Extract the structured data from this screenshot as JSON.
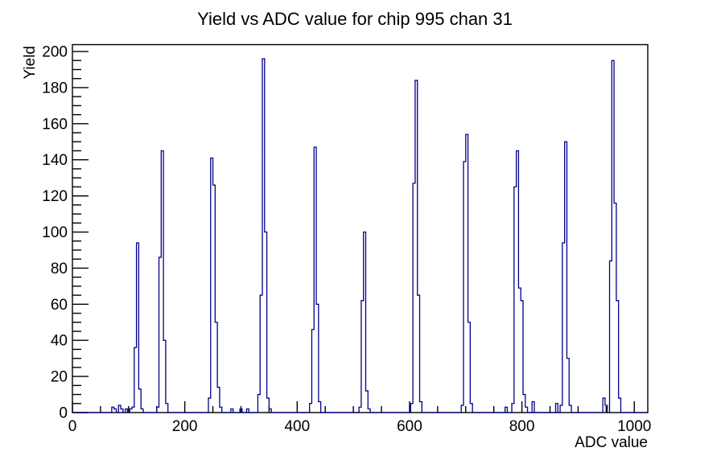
{
  "chart_data": {
    "type": "line",
    "style": "step-histogram",
    "title": "Yield vs ADC value for chip 995 chan 31",
    "xlabel": "ADC value",
    "ylabel": "Yield",
    "xlim": [
      0,
      1024
    ],
    "ylim": [
      0,
      203.8
    ],
    "x_major_ticks": [
      0,
      200,
      400,
      600,
      800,
      1000
    ],
    "x_minor_step": 50,
    "y_major_ticks": [
      0,
      20,
      40,
      60,
      80,
      100,
      120,
      140,
      160,
      180,
      200
    ],
    "y_minor_step": 5,
    "grid": false,
    "legend": "none",
    "line_color": "#00008b",
    "axis_color": "#000000",
    "background_color": "#ffffff",
    "bin_width": 4,
    "peaks": [
      {
        "adc": 116,
        "yield": 94
      },
      {
        "adc": 160,
        "yield": 145
      },
      {
        "adc": 248,
        "yield": 141
      },
      {
        "adc": 340,
        "yield": 196
      },
      {
        "adc": 432,
        "yield": 147
      },
      {
        "adc": 520,
        "yield": 100
      },
      {
        "adc": 612,
        "yield": 184
      },
      {
        "adc": 702,
        "yield": 154
      },
      {
        "adc": 792,
        "yield": 145
      },
      {
        "adc": 878,
        "yield": 150
      },
      {
        "adc": 962,
        "yield": 195
      }
    ],
    "bins": [
      [
        72,
        3
      ],
      [
        76,
        2
      ],
      [
        84,
        4
      ],
      [
        88,
        2
      ],
      [
        96,
        2
      ],
      [
        104,
        2
      ],
      [
        108,
        3
      ],
      [
        112,
        36
      ],
      [
        116,
        94
      ],
      [
        120,
        13
      ],
      [
        124,
        2
      ],
      [
        152,
        3
      ],
      [
        156,
        86
      ],
      [
        160,
        145
      ],
      [
        164,
        40
      ],
      [
        168,
        5
      ],
      [
        244,
        8
      ],
      [
        248,
        141
      ],
      [
        252,
        126
      ],
      [
        256,
        50
      ],
      [
        260,
        14
      ],
      [
        264,
        3
      ],
      [
        284,
        2
      ],
      [
        300,
        2
      ],
      [
        312,
        2
      ],
      [
        332,
        10
      ],
      [
        336,
        65
      ],
      [
        340,
        196
      ],
      [
        344,
        100
      ],
      [
        348,
        8
      ],
      [
        352,
        2
      ],
      [
        424,
        5
      ],
      [
        428,
        46
      ],
      [
        432,
        147
      ],
      [
        436,
        60
      ],
      [
        440,
        6
      ],
      [
        512,
        3
      ],
      [
        516,
        62
      ],
      [
        520,
        100
      ],
      [
        524,
        12
      ],
      [
        528,
        2
      ],
      [
        604,
        5
      ],
      [
        608,
        127
      ],
      [
        612,
        184
      ],
      [
        616,
        65
      ],
      [
        620,
        6
      ],
      [
        694,
        4
      ],
      [
        698,
        139
      ],
      [
        702,
        154
      ],
      [
        706,
        50
      ],
      [
        710,
        5
      ],
      [
        772,
        3
      ],
      [
        784,
        5
      ],
      [
        788,
        125
      ],
      [
        792,
        145
      ],
      [
        796,
        69
      ],
      [
        800,
        62
      ],
      [
        804,
        10
      ],
      [
        808,
        3
      ],
      [
        820,
        6
      ],
      [
        862,
        5
      ],
      [
        870,
        4
      ],
      [
        874,
        94
      ],
      [
        878,
        150
      ],
      [
        882,
        30
      ],
      [
        886,
        4
      ],
      [
        946,
        8
      ],
      [
        950,
        4
      ],
      [
        958,
        84
      ],
      [
        962,
        195
      ],
      [
        966,
        116
      ],
      [
        970,
        62
      ],
      [
        974,
        8
      ]
    ]
  }
}
